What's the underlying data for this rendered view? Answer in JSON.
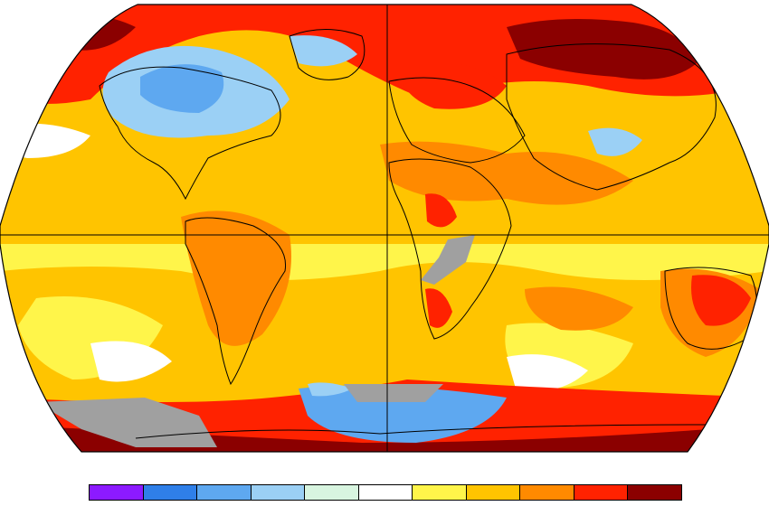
{
  "map": {
    "projection": "robinson",
    "graticule": [
      "equator",
      "prime-meridian"
    ],
    "land_outline_color": "#000000",
    "no_data_color": "#a0a0a0"
  },
  "legend": {
    "colors": [
      "#8c1aff",
      "#2f7fe8",
      "#5ea8f0",
      "#9bd0f5",
      "#d8f5e0",
      "#ffffff",
      "#fff54a",
      "#ffc400",
      "#ff8a00",
      "#ff2200",
      "#8b0000"
    ]
  }
}
